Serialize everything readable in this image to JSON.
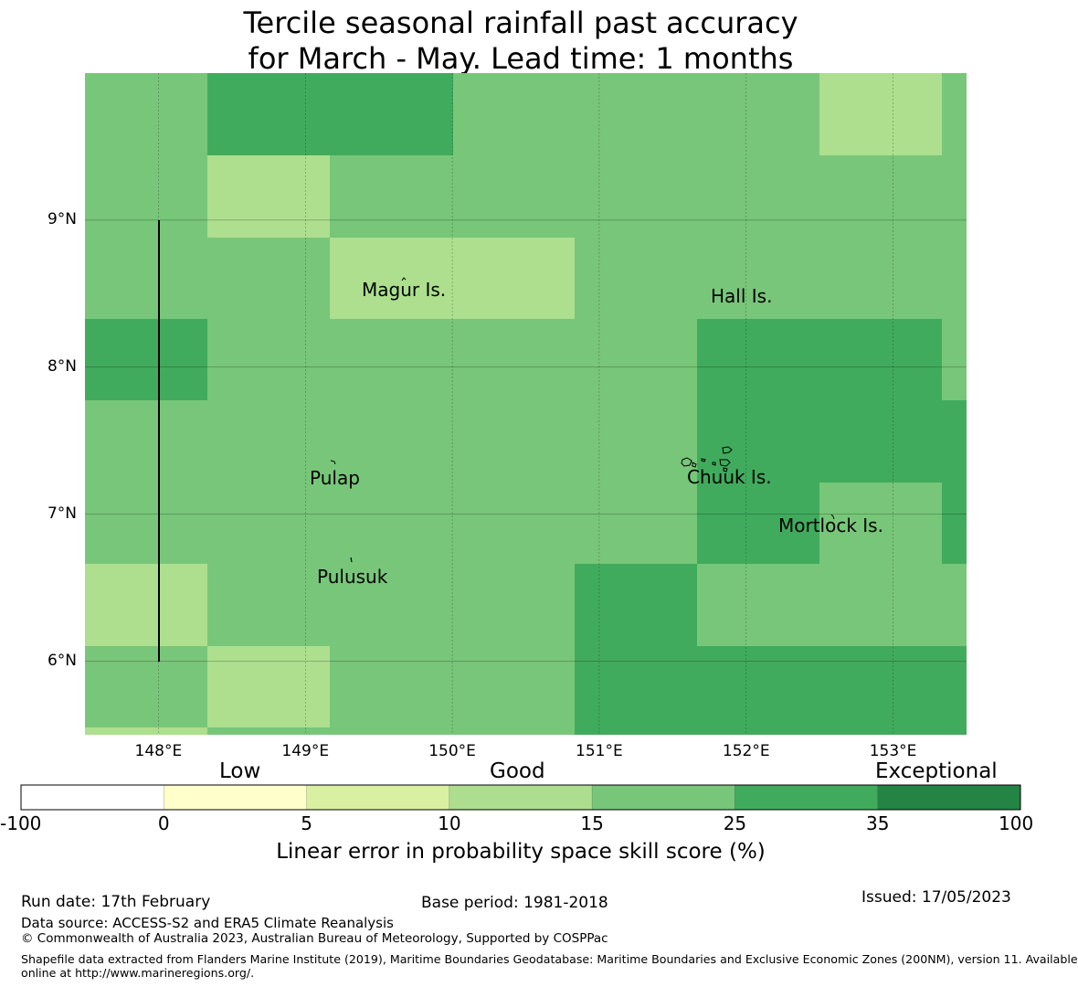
{
  "title": {
    "line1": "Tercile seasonal rainfall past accuracy",
    "line2": "for March - May. Lead time: 1 months"
  },
  "map": {
    "lon_range": [
      147.5,
      153.5
    ],
    "lat_range": [
      5.5,
      10.0
    ],
    "x_ticks": [
      {
        "value": 148,
        "label": "148°E"
      },
      {
        "value": 149,
        "label": "149°E"
      },
      {
        "value": 150,
        "label": "150°E"
      },
      {
        "value": 151,
        "label": "151°E"
      },
      {
        "value": 152,
        "label": "152°E"
      },
      {
        "value": 153,
        "label": "153°E"
      }
    ],
    "y_ticks": [
      {
        "value": 9,
        "label": "9°N"
      },
      {
        "value": 8,
        "label": "8°N"
      },
      {
        "value": 7,
        "label": "7°N"
      },
      {
        "value": 6,
        "label": "6°N"
      }
    ],
    "colors": {
      "c15": "#addf8e",
      "c25": "#78c679",
      "c35": "#41ab5d",
      "grid": "#000000"
    },
    "places": [
      {
        "name": "Magur Is."
      },
      {
        "name": "Hall Is."
      },
      {
        "name": "Pulap"
      },
      {
        "name": "Chuuk Is."
      },
      {
        "name": "Mortlock Is."
      },
      {
        "name": "Pulusuk"
      }
    ]
  },
  "colorbar": {
    "categories": [
      "Low",
      "Good",
      "Exceptional"
    ],
    "bins": [
      {
        "from": -100,
        "to": 0,
        "color": "#ffffff"
      },
      {
        "from": 0,
        "to": 5,
        "color": "#ffffcc"
      },
      {
        "from": 5,
        "to": 10,
        "color": "#d9f0a3"
      },
      {
        "from": 10,
        "to": 15,
        "color": "#addd8e"
      },
      {
        "from": 15,
        "to": 25,
        "color": "#78c679"
      },
      {
        "from": 25,
        "to": 35,
        "color": "#41ab5d"
      },
      {
        "from": 35,
        "to": 100,
        "color": "#238443"
      }
    ],
    "tick_labels": [
      "-100",
      "0",
      "5",
      "10",
      "15",
      "25",
      "35",
      "100"
    ],
    "label": "Linear error in probability space skill score (%)"
  },
  "footer": {
    "run_date": "Run date: 17th February",
    "base_period": "Base period: 1981-2018",
    "issued": "Issued: 17/05/2023",
    "data_source": "Data source: ACCESS-S2 and ERA5 Climate Reanalysis",
    "copyright": "© Commonwealth of Australia 2023, Australian Bureau of Meteorology, Supported by COSPPac",
    "shapefile_line1": "Shapefile data extracted from Flanders Marine Institute (2019), Maritime Boundaries Geodatabase: Maritime Boundaries and Exclusive Economic Zones (200NM), version 11. Available",
    "shapefile_line2": "online at http://www.marineregions.org/."
  }
}
